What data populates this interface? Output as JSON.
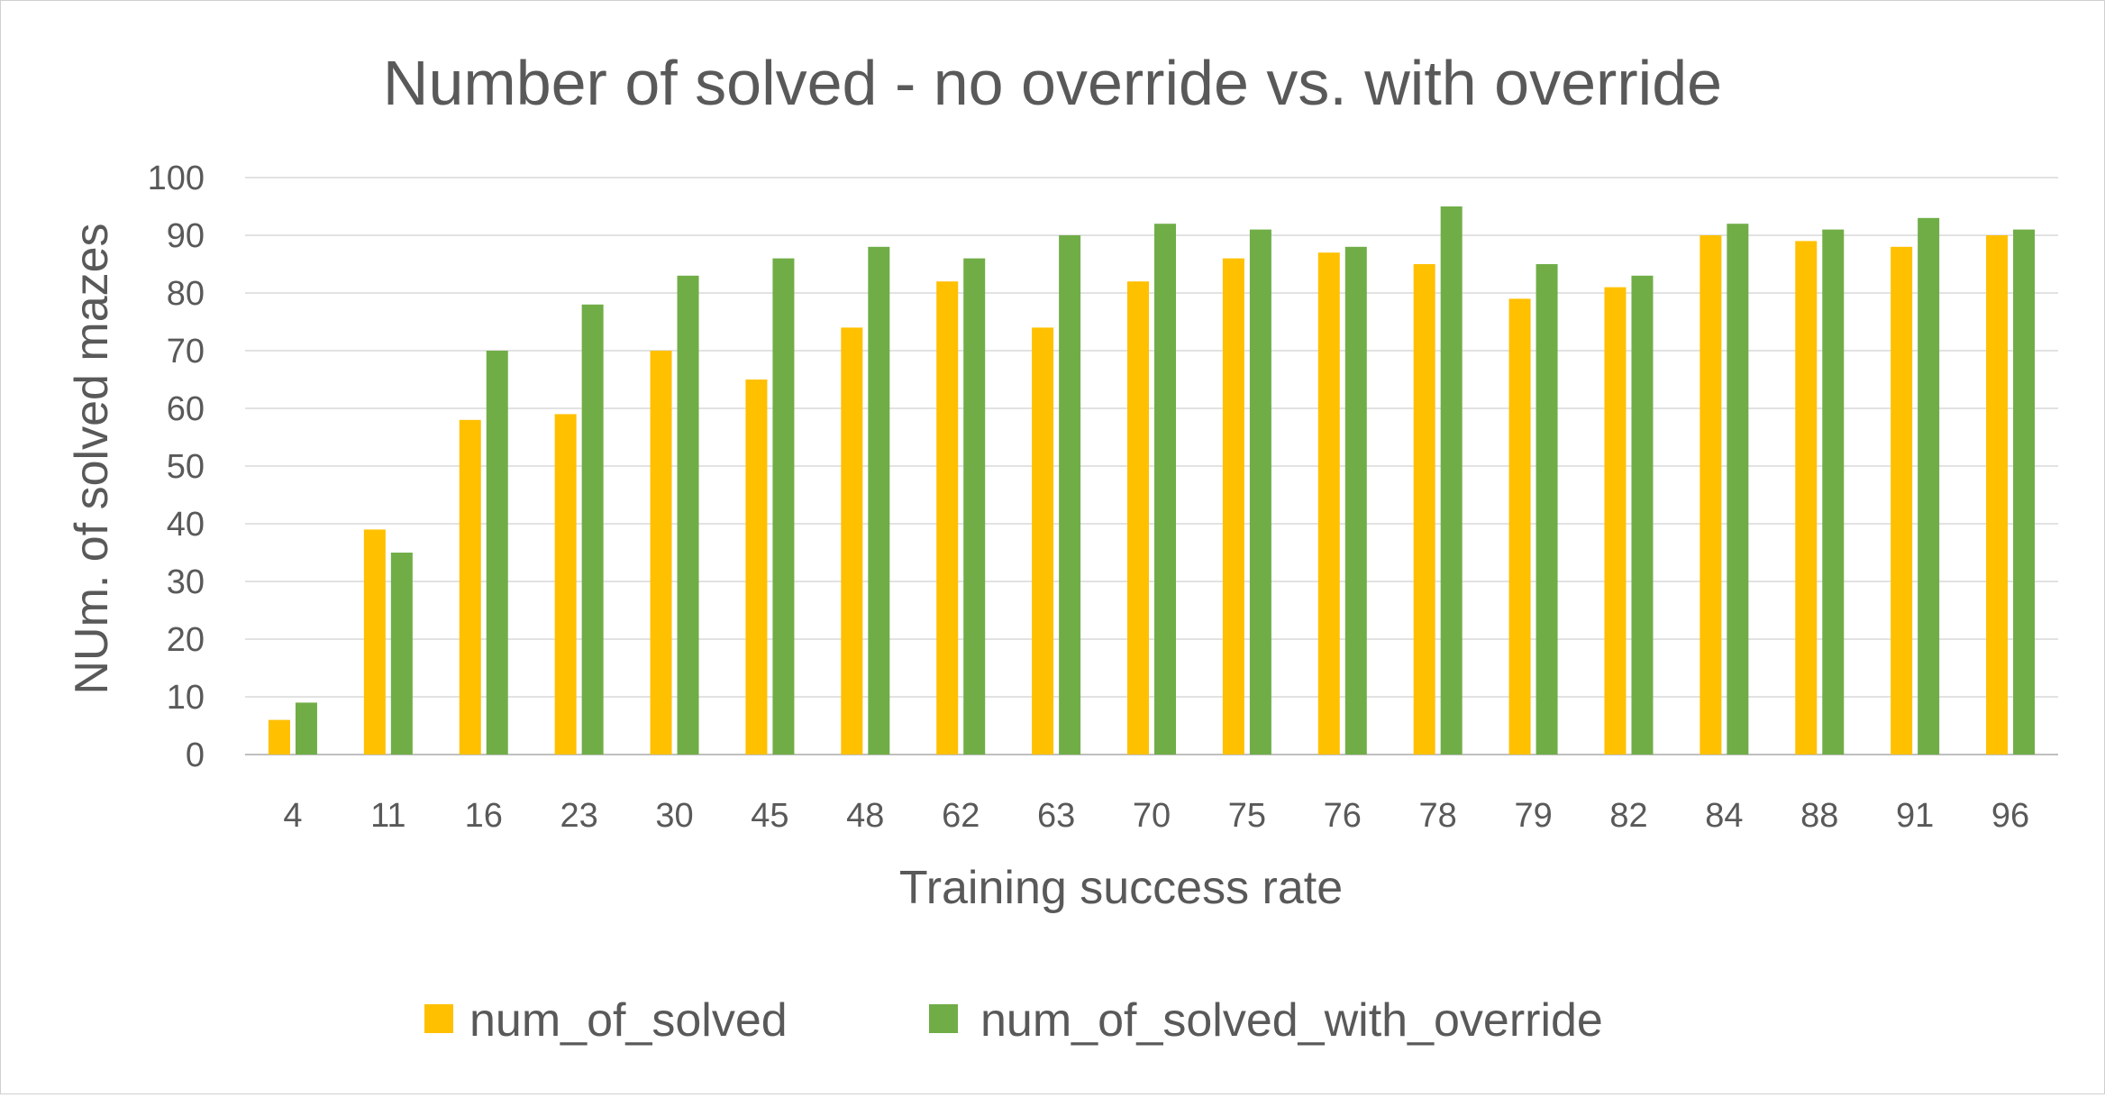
{
  "chart_data": {
    "type": "bar",
    "title": "Number of solved - no override vs. with override",
    "xlabel": "Training success rate",
    "ylabel": "NUm. of solved mazes",
    "ylim": [
      0,
      100
    ],
    "ytick_step": 10,
    "grid": true,
    "legend_position": "bottom",
    "categories": [
      "4",
      "11",
      "16",
      "23",
      "30",
      "45",
      "48",
      "62",
      "63",
      "70",
      "75",
      "76",
      "78",
      "79",
      "82",
      "84",
      "88",
      "91",
      "96"
    ],
    "series": [
      {
        "name": "num_of_solved",
        "color": "#FFC000",
        "values": [
          6,
          39,
          58,
          59,
          70,
          65,
          74,
          82,
          74,
          82,
          86,
          87,
          85,
          79,
          81,
          90,
          89,
          88,
          90
        ]
      },
      {
        "name": "num_of_solved_with_override",
        "color": "#70AD47",
        "values": [
          9,
          35,
          70,
          78,
          83,
          86,
          88,
          86,
          90,
          92,
          91,
          88,
          95,
          85,
          83,
          92,
          91,
          93,
          91
        ]
      }
    ]
  }
}
